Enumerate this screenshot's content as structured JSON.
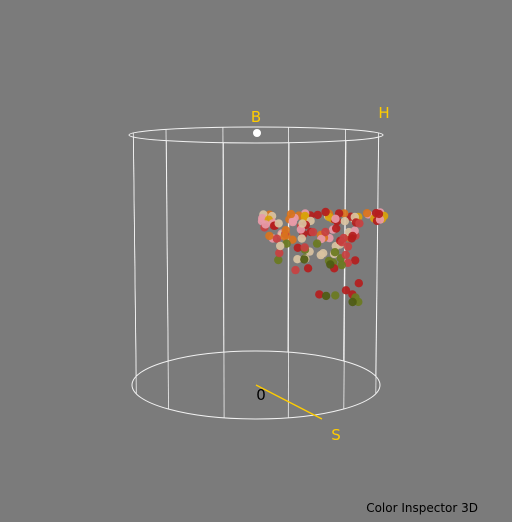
{
  "app_title": "Color Inspector 3D",
  "axes": {
    "brightness_label": "B",
    "hue_label": "H",
    "saturation_label": "S",
    "origin_label": "0"
  },
  "colors": {
    "background": "#7b7b7b",
    "wireframe": "#f2f2f2",
    "axis_label": "#ffcc00",
    "saturation_axis": "#ffcc00",
    "origin_label": "#000000",
    "footer_text": "#000000",
    "brightness_marker": "#ffffff"
  },
  "shape": "cylinder",
  "view": {
    "projection": "perspective",
    "cylinder_ellipse_x_radius": 127,
    "top_ellipse_y_radius": 8,
    "bottom_ellipse_y_radius": 34
  },
  "point_cloud": {
    "colors_present": [
      "#e79aa8",
      "#d9c2a1",
      "#c84040",
      "#b41d1d",
      "#d9731c",
      "#d8a20b",
      "#6a7a1f",
      "#4e5b12"
    ]
  }
}
